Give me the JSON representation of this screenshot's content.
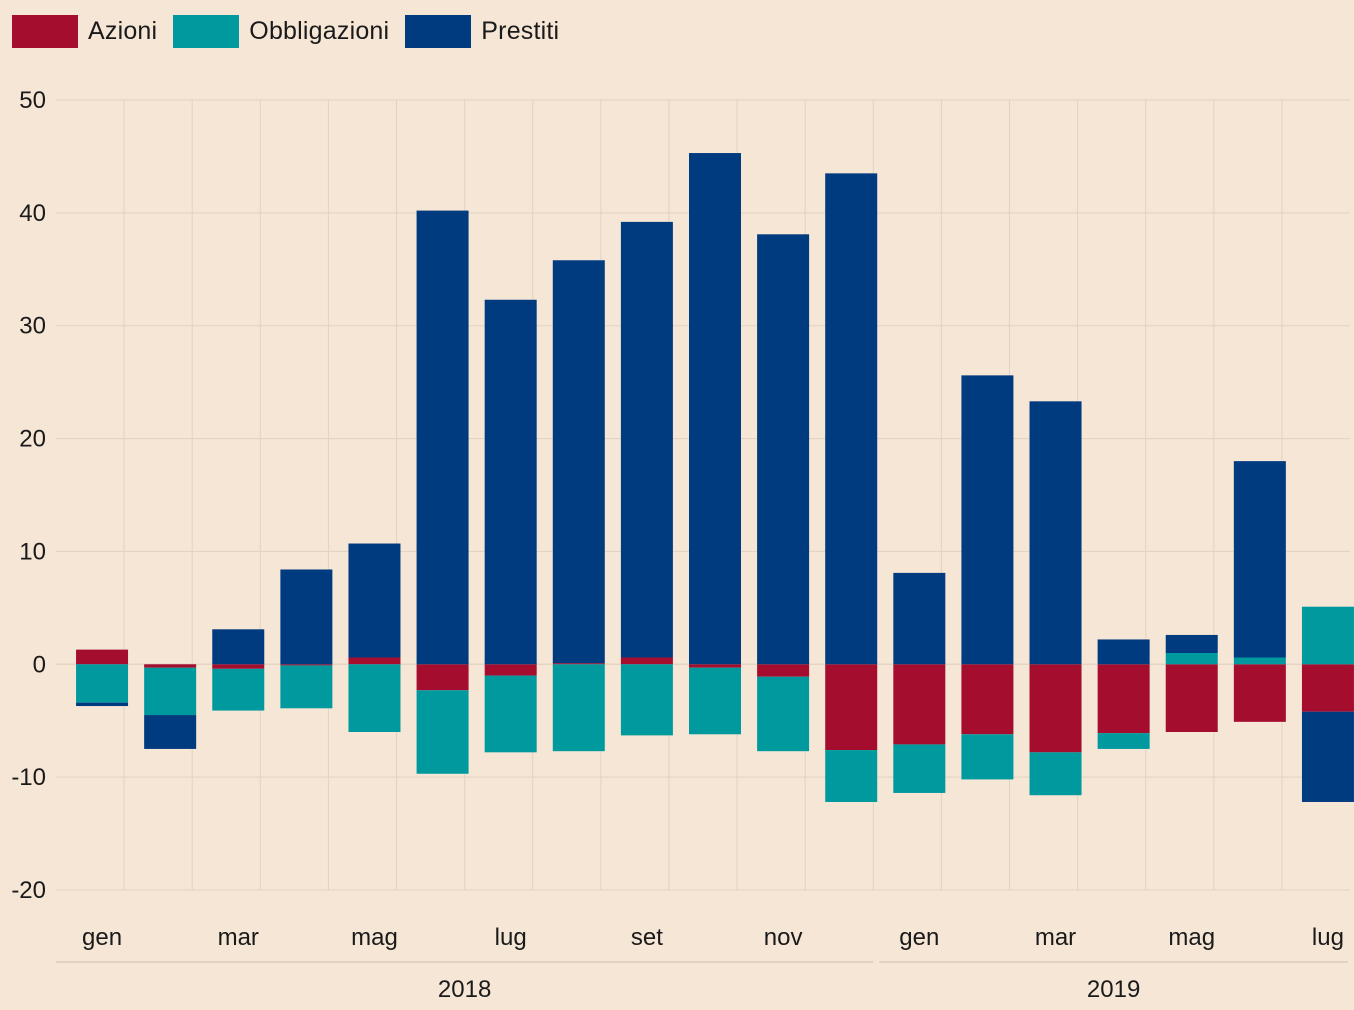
{
  "chart_data": {
    "type": "bar",
    "stacked": true,
    "title": "",
    "xlabel": "",
    "ylabel": "",
    "ylim": [
      -20,
      50
    ],
    "y_ticks": [
      50,
      40,
      30,
      20,
      10,
      0,
      -10,
      -20
    ],
    "grid": true,
    "legend_position": "top-left",
    "categories": [
      "gen 2018",
      "feb 2018",
      "mar 2018",
      "apr 2018",
      "mag 2018",
      "giu 2018",
      "lug 2018",
      "ago 2018",
      "set 2018",
      "ott 2018",
      "nov 2018",
      "dic 2018",
      "gen 2019",
      "feb 2019",
      "mar 2019",
      "apr 2019",
      "mag 2019",
      "giu 2019",
      "lug 2019"
    ],
    "x_tick_labels": [
      {
        "label": "gen",
        "index": 0
      },
      {
        "label": "mar",
        "index": 2
      },
      {
        "label": "mag",
        "index": 4
      },
      {
        "label": "lug",
        "index": 6
      },
      {
        "label": "set",
        "index": 8
      },
      {
        "label": "nov",
        "index": 10
      },
      {
        "label": "gen",
        "index": 12
      },
      {
        "label": "mar",
        "index": 14
      },
      {
        "label": "mag",
        "index": 16
      },
      {
        "label": "lug",
        "index": 18
      }
    ],
    "year_groups": [
      {
        "label": "2018",
        "start": 0,
        "end": 11
      },
      {
        "label": "2019",
        "start": 12,
        "end": 18
      }
    ],
    "series": [
      {
        "name": "Azioni",
        "color": "#a50d2e",
        "values": [
          1.3,
          -0.3,
          -0.4,
          -0.1,
          0.6,
          -2.3,
          -1.0,
          0.1,
          0.6,
          -0.3,
          -1.1,
          -7.6,
          -7.1,
          -6.2,
          -7.8,
          -6.1,
          -6.0,
          -5.1,
          -4.2
        ]
      },
      {
        "name": "Obbligazioni",
        "color": "#00999e",
        "values": [
          -3.4,
          -4.2,
          -3.7,
          -3.8,
          -6.0,
          -7.4,
          -6.8,
          -7.7,
          -6.3,
          -5.9,
          -6.6,
          -4.6,
          -4.3,
          -4.0,
          -3.8,
          -1.4,
          1.0,
          0.6,
          5.1
        ]
      },
      {
        "name": "Prestiti",
        "color": "#003a7f",
        "values": [
          -0.3,
          -3.0,
          3.1,
          8.4,
          10.1,
          40.2,
          32.3,
          35.7,
          38.6,
          45.3,
          38.1,
          43.5,
          8.1,
          25.6,
          23.3,
          2.2,
          1.6,
          17.4,
          -8.0
        ]
      }
    ]
  }
}
